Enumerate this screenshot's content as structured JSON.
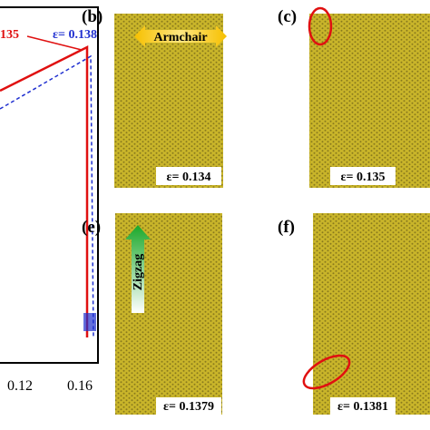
{
  "plot": {
    "annotation_red": "135",
    "annotation_blue": "ε= 0.138",
    "xtick_labels": [
      "0.12",
      "0.16"
    ]
  },
  "panels": [
    {
      "label": "(b)",
      "strain": "ε= 0.134",
      "direction": "Armchair"
    },
    {
      "label": "(c)",
      "strain": "ε= 0.135"
    },
    {
      "label": "(e)",
      "strain": "ε= 0.1379",
      "direction": "Zigzag"
    },
    {
      "label": "(f)",
      "strain": "ε= 0.1381"
    }
  ]
}
